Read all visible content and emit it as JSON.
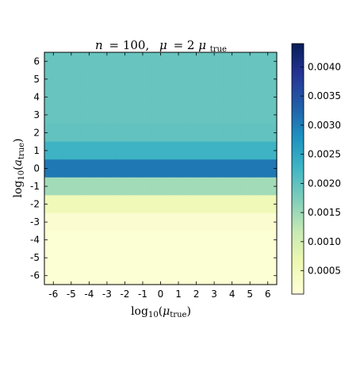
{
  "chart_data": {
    "type": "heatmap",
    "title_parts": {
      "n_label": "n",
      "n_value": "= 100,",
      "mu_label": "μ",
      "mu_eq": "= 2",
      "mu_rhs": "μ",
      "mu_rhs_sub": "true"
    },
    "xlabel_parts": {
      "base": "log",
      "sub": "10",
      "open": "(",
      "sym": "μ",
      "sym_sub": "true",
      "close": ")"
    },
    "ylabel_parts": {
      "base": "log",
      "sub": "10",
      "open": "(",
      "sym": "a",
      "sym_sub": "true",
      "close": ")"
    },
    "x_ticks": [
      "-6",
      "-5",
      "-4",
      "-3",
      "-2",
      "-1",
      "0",
      "1",
      "2",
      "3",
      "4",
      "5",
      "6"
    ],
    "y_ticks": [
      "6",
      "5",
      "4",
      "3",
      "2",
      "1",
      "0",
      "-1",
      "-2",
      "-3",
      "-4",
      "-5",
      "-6"
    ],
    "x_range": [
      -6.5,
      6.5
    ],
    "y_range": [
      -6.5,
      6.5
    ],
    "row_values": [
      0.00192,
      0.00192,
      0.00192,
      0.00192,
      0.00197,
      0.0023,
      0.00305,
      0.00145,
      0.00055,
      0.00022,
      0.00018,
      0.00018,
      0.00018
    ],
    "colorbar": {
      "min": 0.0001,
      "max": 0.0044,
      "ticks": [
        "0.0005",
        "0.0010",
        "0.0015",
        "0.0020",
        "0.0025",
        "0.0030",
        "0.0035",
        "0.0040"
      ],
      "colormap": "YlGnBu"
    }
  }
}
